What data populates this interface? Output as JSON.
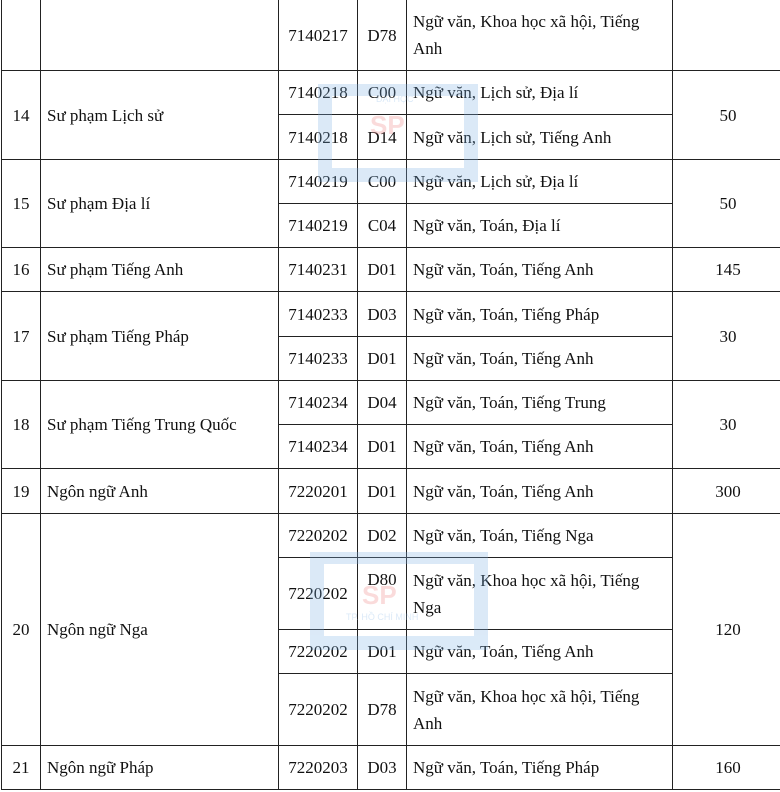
{
  "watermark": {
    "top": "ĐẠI HỌC",
    "main": "SP",
    "bottom": "TP. HỒ CHÍ MINH",
    "frame_color": "#7fb3e6",
    "logo_color": "#f08080"
  },
  "rows": [
    {
      "no": "",
      "name": "",
      "quota": "",
      "subs": [
        {
          "code": "7140217",
          "combo": "D78",
          "subjects": "Ngữ văn, Khoa học xã hội, Tiếng Anh",
          "h": 71
        }
      ]
    },
    {
      "no": "14",
      "name": "Sư phạm Lịch sử",
      "quota": "50",
      "subs": [
        {
          "code": "7140218",
          "combo": "C00",
          "subjects": "Ngữ văn, Lịch sử, Địa lí",
          "h": 44
        },
        {
          "code": "7140218",
          "combo": "D14",
          "subjects": "Ngữ văn, Lịch sử, Tiếng Anh",
          "h": 45
        }
      ]
    },
    {
      "no": "15",
      "name": "Sư phạm Địa lí",
      "quota": "50",
      "subs": [
        {
          "code": "7140219",
          "combo": "C00",
          "subjects": "Ngữ văn, Lịch sử, Địa lí",
          "h": 44
        },
        {
          "code": "7140219",
          "combo": "C04",
          "subjects": "Ngữ văn, Toán, Địa lí",
          "h": 44
        }
      ]
    },
    {
      "no": "16",
      "name": "Sư phạm Tiếng Anh",
      "quota": "145",
      "subs": [
        {
          "code": "7140231",
          "combo": "D01",
          "subjects": "Ngữ văn, Toán, Tiếng Anh",
          "h": 44
        }
      ]
    },
    {
      "no": "17",
      "name": "Sư phạm Tiếng Pháp",
      "quota": "30",
      "subs": [
        {
          "code": "7140233",
          "combo": "D03",
          "subjects": "Ngữ văn, Toán, Tiếng Pháp",
          "h": 45
        },
        {
          "code": "7140233",
          "combo": "D01",
          "subjects": "Ngữ văn, Toán, Tiếng Anh",
          "h": 44
        }
      ]
    },
    {
      "no": "18",
      "name": "Sư phạm Tiếng Trung Quốc",
      "quota": "30",
      "subs": [
        {
          "code": "7140234",
          "combo": "D04",
          "subjects": "Ngữ văn, Toán, Tiếng Trung",
          "h": 44
        },
        {
          "code": "7140234",
          "combo": "D01",
          "subjects": "Ngữ văn, Toán, Tiếng Anh",
          "h": 44
        }
      ]
    },
    {
      "no": "19",
      "name": "Ngôn ngữ Anh",
      "quota": "300",
      "subs": [
        {
          "code": "7220201",
          "combo": "D01",
          "subjects": "Ngữ văn, Toán, Tiếng Anh",
          "h": 45
        }
      ]
    },
    {
      "no": "20",
      "name": "Ngôn ngữ Nga",
      "quota": "120",
      "subs": [
        {
          "code": "7220202",
          "combo": "D02",
          "subjects": "Ngữ văn, Toán, Tiếng Nga",
          "h": 44
        },
        {
          "code": "7220202",
          "combo": "D80",
          "subjects": "Ngữ văn, Khoa học xã hội, Tiếng Nga",
          "h": 72,
          "combo_top": true
        },
        {
          "code": "7220202",
          "combo": "D01",
          "subjects": "Ngữ văn, Toán, Tiếng Anh",
          "h": 44
        },
        {
          "code": "7220202",
          "combo": "D78",
          "subjects": "Ngữ văn, Khoa học xã hội, Tiếng Anh",
          "h": 72
        }
      ]
    },
    {
      "no": "21",
      "name": "Ngôn ngữ Pháp",
      "quota": "160",
      "subs": [
        {
          "code": "7220203",
          "combo": "D03",
          "subjects": "Ngữ văn, Toán, Tiếng Pháp",
          "h": 44
        }
      ]
    }
  ]
}
